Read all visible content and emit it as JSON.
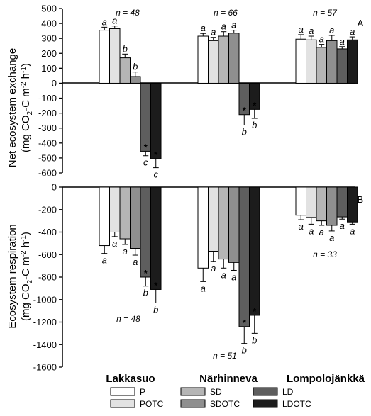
{
  "chart_data": [
    {
      "panel_label": "A",
      "type": "bar",
      "ylabel_lines": [
        "Net ecosystem exchange",
        "(mg CO",
        "2",
        "-C m",
        "-2",
        " h",
        "-1",
        ")"
      ],
      "ylim": [
        -600,
        500
      ],
      "yticks": [
        500,
        400,
        300,
        200,
        100,
        0,
        -100,
        -200,
        -300,
        -400,
        -500,
        -600
      ],
      "categories": [
        "Lakkasuo",
        "Närhinneva",
        "Lompolojänkkä"
      ],
      "n_labels": [
        "n = 48",
        "n = 66",
        "n = 57"
      ],
      "series": [
        {
          "name": "P",
          "values": [
            355,
            315,
            295
          ],
          "errors": [
            20,
            18,
            30
          ],
          "letters": [
            "a",
            "a",
            "a"
          ],
          "significant": [
            false,
            false,
            false
          ]
        },
        {
          "name": "POTC",
          "values": [
            365,
            285,
            290
          ],
          "errors": [
            18,
            22,
            25
          ],
          "letters": [
            "a",
            "a",
            "a"
          ],
          "significant": [
            false,
            false,
            false
          ]
        },
        {
          "name": "SD",
          "values": [
            170,
            315,
            240
          ],
          "errors": [
            25,
            30,
            20
          ],
          "letters": [
            "b",
            "a",
            "a"
          ],
          "significant": [
            false,
            false,
            false
          ]
        },
        {
          "name": "SDOTC",
          "values": [
            45,
            335,
            285
          ],
          "errors": [
            30,
            20,
            35
          ],
          "letters": [
            "b",
            "a",
            "a"
          ],
          "significant": [
            false,
            false,
            false
          ]
        },
        {
          "name": "LD",
          "values": [
            -455,
            -210,
            230
          ],
          "errors": [
            30,
            70,
            15
          ],
          "letters": [
            "c",
            "b",
            "a"
          ],
          "significant": [
            true,
            true,
            false
          ]
        },
        {
          "name": "LDOTC",
          "values": [
            -505,
            -175,
            290
          ],
          "errors": [
            60,
            60,
            20
          ],
          "letters": [
            "c",
            "b",
            "a"
          ],
          "significant": [
            true,
            true,
            false
          ]
        }
      ]
    },
    {
      "panel_label": "B",
      "type": "bar",
      "ylabel_lines": [
        "Ecosystem respiration",
        "(mg CO",
        "2",
        "-C m",
        "-2",
        " h",
        "-1",
        ")"
      ],
      "ylim": [
        -1600,
        0
      ],
      "yticks": [
        0,
        -200,
        -400,
        -600,
        -800,
        -1000,
        -1200,
        -1400,
        -1600
      ],
      "categories": [
        "Lakkasuo",
        "Närhinneva",
        "Lompolojänkkä"
      ],
      "n_labels": [
        "n = 48",
        "n = 51",
        "n = 33"
      ],
      "series": [
        {
          "name": "P",
          "values": [
            -520,
            -720,
            -250
          ],
          "errors": [
            70,
            120,
            40
          ],
          "letters": [
            "a",
            "a",
            "a"
          ],
          "significant": [
            false,
            false,
            false
          ]
        },
        {
          "name": "POTC",
          "values": [
            -400,
            -570,
            -270
          ],
          "errors": [
            40,
            90,
            60
          ],
          "letters": [
            "a",
            "a",
            "a"
          ],
          "significant": [
            false,
            false,
            false
          ]
        },
        {
          "name": "SD",
          "values": [
            -460,
            -640,
            -300
          ],
          "errors": [
            50,
            80,
            40
          ],
          "letters": [
            "a",
            "a",
            "a"
          ],
          "significant": [
            false,
            false,
            false
          ]
        },
        {
          "name": "SDOTC",
          "values": [
            -545,
            -670,
            -340
          ],
          "errors": [
            60,
            70,
            50
          ],
          "letters": [
            "a",
            "a",
            "a"
          ],
          "significant": [
            false,
            false,
            false
          ]
        },
        {
          "name": "LD",
          "values": [
            -800,
            -1240,
            -265
          ],
          "errors": [
            80,
            150,
            20
          ],
          "letters": [
            "b",
            "b",
            "a"
          ],
          "significant": [
            true,
            true,
            false
          ]
        },
        {
          "name": "LDOTC",
          "values": [
            -910,
            -1140,
            -310
          ],
          "errors": [
            120,
            160,
            20
          ],
          "letters": [
            "b",
            "b",
            "a"
          ],
          "significant": [
            true,
            true,
            false
          ]
        }
      ]
    }
  ],
  "series_colors": {
    "P": "#ffffff",
    "POTC": "#e2e2e2",
    "SD": "#b5b5b5",
    "SDOTC": "#8f8f8f",
    "LD": "#5e5e5e",
    "LDOTC": "#1c1c1c"
  },
  "legend": [
    "P",
    "SD",
    "LD",
    "POTC",
    "SDOTC",
    "LDOTC"
  ]
}
